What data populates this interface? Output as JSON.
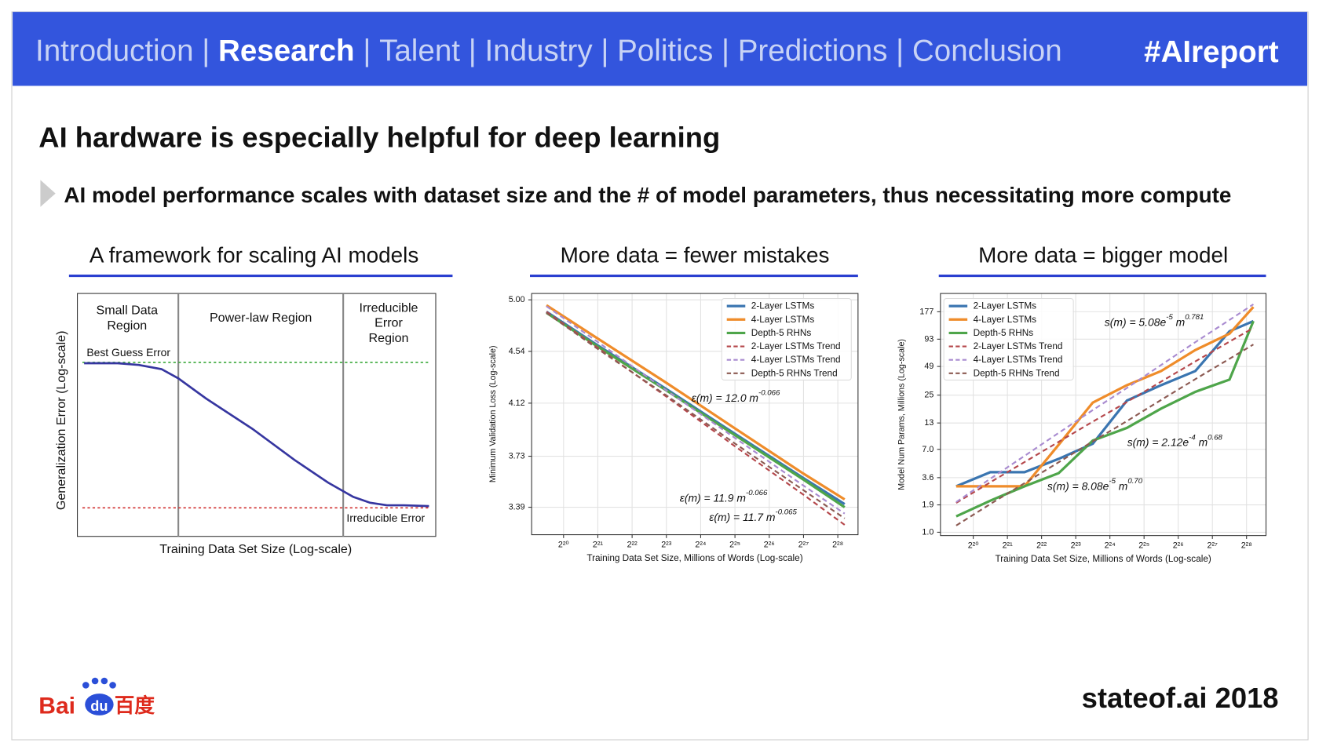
{
  "header": {
    "nav": [
      "Introduction",
      "Research",
      "Talent",
      "Industry",
      "Politics",
      "Predictions",
      "Conclusion"
    ],
    "active": 1,
    "separator": "|",
    "tag": "#AIreport"
  },
  "title": "AI hardware is especially helpful for deep learning",
  "subtitle": "AI model performance scales with dataset size and the # of model parameters, thus necessitating more compute",
  "framework": {
    "title": "A framework for scaling AI models",
    "regions": [
      [
        "Small Data",
        "Region"
      ],
      [
        "Power-law Region"
      ],
      [
        "Irreducible",
        "Error",
        "Region"
      ]
    ],
    "best_guess": "Best Guess Error",
    "irreducible": "Irreducible Error",
    "x_label": "Training Data Set Size (Log-scale)",
    "y_label": "Generalization Error (Log-scale)"
  },
  "chart_data": [
    {
      "type": "line",
      "title": "More data = fewer mistakes",
      "x_label": "Training Data Set Size, Millions of Words (Log-scale)",
      "y_label": "Minimum Validation Loss (Log-scale)",
      "xscale": "log",
      "yscale": "log",
      "grid": true,
      "legend": "upper right",
      "xlim": [
        550000,
        404000000
      ],
      "ylim": [
        3.22,
        5.06
      ],
      "xticks": [
        {
          "value": 1048576,
          "label": "2²⁰"
        },
        {
          "value": 2097152,
          "label": "2²¹"
        },
        {
          "value": 4194304,
          "label": "2²²"
        },
        {
          "value": 8388608,
          "label": "2²³"
        },
        {
          "value": 16777216,
          "label": "2²⁴"
        },
        {
          "value": 33554432,
          "label": "2²⁵"
        },
        {
          "value": 67108864,
          "label": "2²⁶"
        },
        {
          "value": 134217728,
          "label": "2²⁷"
        },
        {
          "value": 268435456,
          "label": "2²⁸"
        }
      ],
      "yticks": [
        3.39,
        3.73,
        4.12,
        4.54,
        {
          "value": 5,
          "label": "5.00"
        }
      ],
      "x": [
        741455,
        2097152,
        8388608,
        33554432,
        134217728,
        308351904
      ],
      "series": [
        {
          "name": "2-Layer LSTMs",
          "color": "#3a75b0",
          "style": "solid",
          "values": [
            4.89,
            4.59,
            4.23,
            3.89,
            3.58,
            3.41
          ]
        },
        {
          "name": "4-Layer LSTMs",
          "color": "#ef8c2a",
          "style": "solid",
          "values": [
            4.95,
            4.65,
            4.28,
            3.93,
            3.61,
            3.44
          ]
        },
        {
          "name": "Depth-5 RHNs",
          "color": "#4ea54a",
          "style": "solid",
          "values": [
            4.88,
            4.58,
            4.22,
            3.88,
            3.57,
            3.39
          ]
        },
        {
          "name": "2-Layer LSTMs Trend",
          "color": "#b5474b",
          "style": "dashed",
          "values": [
            4.89,
            4.57,
            4.17,
            3.8,
            3.47,
            3.28
          ]
        },
        {
          "name": "4-Layer LSTMs Trend",
          "color": "#a98bd0",
          "style": "dashed",
          "values": [
            4.94,
            4.62,
            4.22,
            3.86,
            3.53,
            3.35
          ]
        },
        {
          "name": "Depth-5 RHNs Trend",
          "color": "#8c5a52",
          "style": "dashed",
          "values": [
            4.88,
            4.56,
            4.18,
            3.82,
            3.5,
            3.32
          ]
        }
      ],
      "annotations": [
        [
          {
            "text": "ε(m) = 12.0 m"
          },
          {
            "sup": "-0.066"
          }
        ],
        [
          {
            "text": "ε(m) = 11.9 m"
          },
          {
            "sup": "-0.066"
          }
        ],
        [
          {
            "text": "ε(m) = 11.7 m"
          },
          {
            "sup": "-0.065"
          }
        ]
      ]
    },
    {
      "type": "line",
      "title": "More data = bigger model",
      "x_label": "Training Data Set Size, Millions of Words (Log-scale)",
      "y_label": "Model Num Params, Millions (Log-scale)",
      "xscale": "log",
      "yscale": "log",
      "grid": true,
      "legend": "upper left",
      "xlim": [
        539000,
        398400000
      ],
      "ylim": [
        0.925,
        272
      ],
      "xticks": [
        {
          "value": 1048576,
          "label": "2²⁰"
        },
        {
          "value": 2097152,
          "label": "2²¹"
        },
        {
          "value": 4194304,
          "label": "2²²"
        },
        {
          "value": 8388608,
          "label": "2²³"
        },
        {
          "value": 16777216,
          "label": "2²⁴"
        },
        {
          "value": 33554432,
          "label": "2²⁵"
        },
        {
          "value": 67108864,
          "label": "2²⁶"
        },
        {
          "value": 134217728,
          "label": "2²⁷"
        },
        {
          "value": 268435456,
          "label": "2²⁸"
        }
      ],
      "yticks": [
        {
          "value": 1,
          "label": "1.0"
        },
        1.9,
        3.6,
        {
          "value": 7,
          "label": "7.0"
        },
        13,
        25,
        49,
        93,
        177
      ],
      "x": [
        741455,
        1482910,
        2965821,
        5931642,
        11863283,
        23726566,
        47453133,
        94906266,
        189812531,
        308351904
      ],
      "series": [
        {
          "name": "2-Layer LSTMs",
          "color": "#3a75b0",
          "style": "solid",
          "values": [
            2.94,
            4.1,
            4.1,
            5.6,
            8.0,
            22,
            31.6,
            44,
            112,
            142
          ]
        },
        {
          "name": "4-Layer LSTMs",
          "color": "#ef8c2a",
          "style": "solid",
          "values": [
            2.94,
            2.94,
            2.94,
            7.8,
            21,
            31.6,
            44,
            72,
            106,
            198
          ]
        },
        {
          "name": "Depth-5 RHNs",
          "color": "#4ea54a",
          "style": "solid",
          "values": [
            1.45,
            2.1,
            2.94,
            4.0,
            8.6,
            11.6,
            18.2,
            27,
            36,
            142
          ]
        },
        {
          "name": "2-Layer LSTMs Trend",
          "color": "#b5474b",
          "style": "dashed",
          "values": [
            1.99,
            3.23,
            5.19,
            8.35,
            13.4,
            21.3,
            34.3,
            55.2,
            87.8,
            121
          ]
        },
        {
          "name": "4-Layer LSTMs Trend",
          "color": "#a98bd0",
          "style": "dashed",
          "values": [
            2.03,
            3.51,
            6.0,
            10.3,
            17.6,
            29.6,
            50.7,
            86.7,
            146,
            211
          ]
        },
        {
          "name": "Depth-5 RHNs Trend",
          "color": "#8c5a52",
          "style": "dashed",
          "values": [
            1.17,
            1.94,
            3.16,
            5.17,
            8.43,
            13.6,
            22.3,
            36.4,
            58.7,
            82.1
          ]
        }
      ],
      "annotations": [
        [
          {
            "text": "s(m) = 5.08e"
          },
          {
            "sup": "-5"
          },
          {
            "text": " m"
          },
          {
            "sup": "0.781"
          }
        ],
        [
          {
            "text": "s(m) = 2.12e"
          },
          {
            "sup": "-4"
          },
          {
            "text": " m"
          },
          {
            "sup": "0.68"
          }
        ],
        [
          {
            "text": "s(m) = 8.08e"
          },
          {
            "sup": "-5"
          },
          {
            "text": " m"
          },
          {
            "sup": "0.70"
          }
        ]
      ]
    }
  ],
  "footer": {
    "logo": [
      "Bai",
      "du",
      "百度"
    ],
    "source": "stateof.ai 2018"
  }
}
